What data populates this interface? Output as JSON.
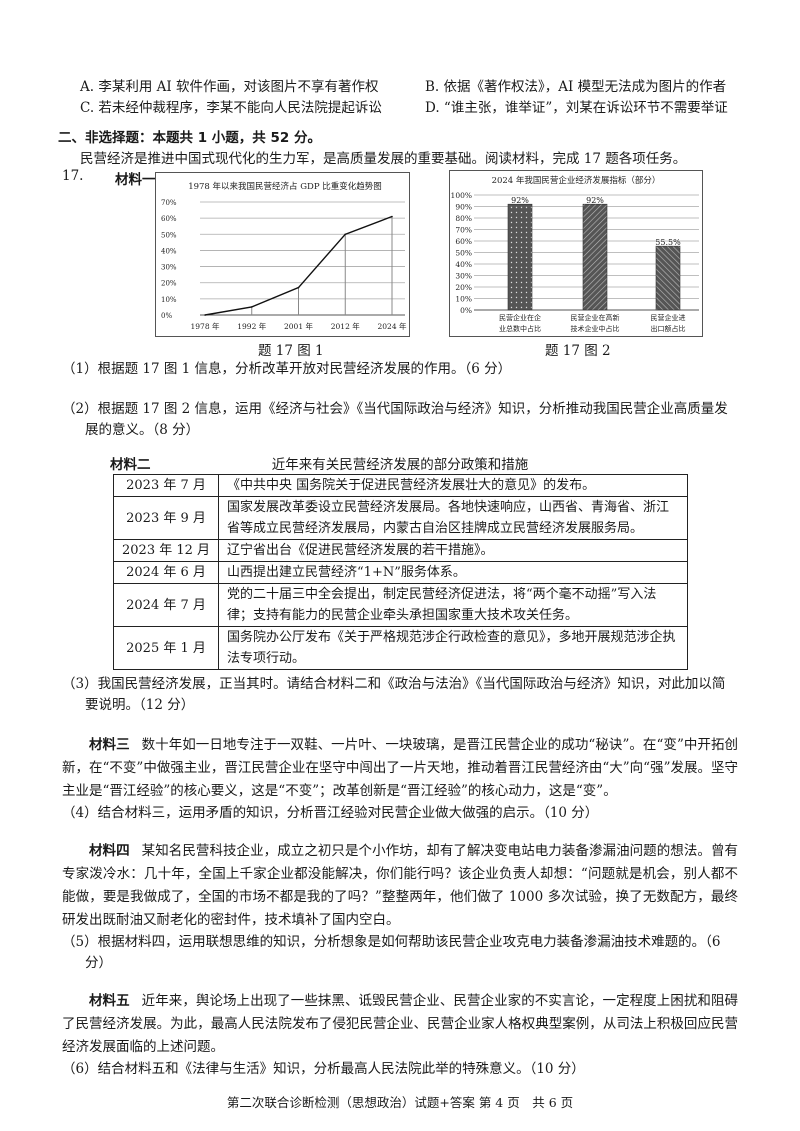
{
  "options": {
    "A": "A. 李某利用 AI 软件作画，对该图片不享有著作权",
    "B": "B. 依据《著作权法》，AI 模型无法成为图片的作者",
    "C": "C. 若未经仲裁程序，李某不能向人民法院提起诉讼",
    "D": "D. “谁主张，谁举证”，刘某在诉讼环节不需要举证"
  },
  "section_heading": "二、非选择题：本题共 1 小题，共 52 分。",
  "intro": "民营经济是推进中国式现代化的生力军，是高质量发展的重要基础。阅读材料，完成 17 题各项任务。",
  "question_number": "17.",
  "material1_label": "材料一",
  "chart_data": [
    {
      "type": "line",
      "title": "1978 年以来我国民营经济占 GDP 比重变化趋势图",
      "categories": [
        "1978 年",
        "1992 年",
        "2001 年",
        "2012 年",
        "2024 年"
      ],
      "values": [
        0,
        5,
        17,
        50,
        61
      ],
      "yticks": [
        "0%",
        "10%",
        "20%",
        "30%",
        "40%",
        "50%",
        "60%",
        "70%"
      ],
      "ylim": [
        0,
        70
      ],
      "grid": true,
      "caption": "题 17 图 1"
    },
    {
      "type": "bar",
      "title": "2024 年我国民营企业经济发展指标（部分）",
      "categories": [
        [
          "民营企业在企",
          "业总数中占比"
        ],
        [
          "民营企业在高新",
          "技术企业中占比"
        ],
        [
          "民营企业进",
          "出口额占比"
        ]
      ],
      "values": [
        92,
        92,
        55.5
      ],
      "data_labels": [
        "92%",
        "92%",
        "55.5%"
      ],
      "yticks": [
        "0%",
        "10%",
        "20%",
        "30%",
        "40%",
        "50%",
        "60%",
        "70%",
        "80%",
        "90%",
        "100%"
      ],
      "ylim": [
        0,
        100
      ],
      "grid": true,
      "bar_color": "#555555",
      "caption": "题 17 图 2"
    }
  ],
  "q1": "（1）根据题 17 图 1 信息，分析改革开放对民营经济发展的作用。（6 分）",
  "q2": "（2）根据题 17 图 2 信息，运用《经济与社会》《当代国际政治与经济》知识，分析推动我国民营企业高质量发展的意义。（8 分）",
  "material2": {
    "label": "材料二",
    "title": "近年来有关民营经济发展的部分政策和措施",
    "rows": [
      {
        "date": "2023 年 7 月",
        "text": "《中共中央 国务院关于促进民营经济发展壮大的意见》的发布。"
      },
      {
        "date": "2023 年 9 月",
        "text": "国家发展改革委设立民营经济发展局。各地快速响应，山西省、青海省、浙江省等成立民营经济发展局，内蒙古自治区挂牌成立民营经济发展服务局。"
      },
      {
        "date": "2023 年 12 月",
        "text": "辽宁省出台《促进民营经济发展的若干措施》。"
      },
      {
        "date": "2024 年 6 月",
        "text": "山西提出建立民营经济“1+N”服务体系。"
      },
      {
        "date": "2024 年 7 月",
        "text": "党的二十届三中全会提出，制定民营经济促进法，将“两个毫不动摇”写入法律；支持有能力的民营企业牵头承担国家重大技术攻关任务。"
      },
      {
        "date": "2025 年 1 月",
        "text": "国务院办公厅发布《关于严格规范涉企行政检查的意见》，多地开展规范涉企执法专项行动。"
      }
    ]
  },
  "q3": "（3）我国民营经济发展，正当其时。请结合材料二和《政治与法治》《当代国际政治与经济》知识，对此加以简要说明。（12 分）",
  "material3": {
    "label": "材料三",
    "text": "数十年如一日地专注于一双鞋、一片叶、一块玻璃，是晋江民营企业的成功“秘诀”。在“变”中开拓创新，在“不变”中做强主业，晋江民营企业在坚守中闯出了一片天地，推动着晋江民营经济由“大”向“强”发展。坚守主业是“晋江经验”的核心要义，这是“不变”；改革创新是“晋江经验”的核心动力，这是“变”。"
  },
  "q4": "（4）结合材料三，运用矛盾的知识，分析晋江经验对民营企业做大做强的启示。（10 分）",
  "material4": {
    "label": "材料四",
    "text": "某知名民营科技企业，成立之初只是个小作坊，却有了解决变电站电力装备渗漏油问题的想法。曾有专家泼冷水：几十年，全国上千家企业都没能解决，你们能行吗？该企业负责人却想：“问题就是机会，别人都不能做，要是我做成了，全国的市场不都是我的了吗？”整整两年，他们做了 1000 多次试验，换了无数配方，最终研发出既耐油又耐老化的密封件，技术填补了国内空白。"
  },
  "q5": "（5）根据材料四，运用联想思维的知识，分析想象是如何帮助该民营企业攻克电力装备渗漏油技术难题的。（6 分）",
  "material5": {
    "label": "材料五",
    "text": "近年来，舆论场上出现了一些抹黑、诋毁民营企业、民营企业家的不实言论，一定程度上困扰和阻碍了民营经济发展。为此，最高人民法院发布了侵犯民营企业、民营企业家人格权典型案例，从司法上积极回应民营经济发展面临的上述问题。"
  },
  "q6": "（6）结合材料五和《法律与生活》知识，分析最高人民法院此举的特殊意义。（10 分）",
  "footer": "第二次联合诊断检测（思想政治）试题+答案 第 4 页　共 6 页"
}
